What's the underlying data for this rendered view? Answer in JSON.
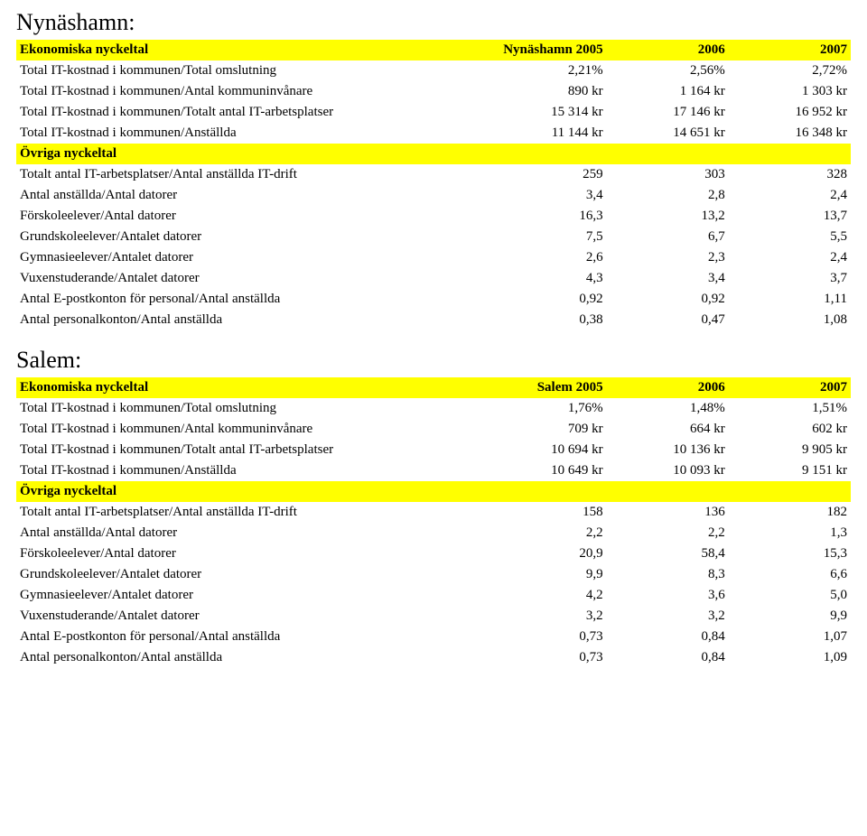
{
  "sections": [
    {
      "title": "Nynäshamn:",
      "header": {
        "label": "Ekonomiska nyckeltal",
        "c1": "Nynäshamn 2005",
        "c2": "2006",
        "c3": "2007"
      },
      "rowsA": [
        {
          "label": "Total IT-kostnad i kommunen/Total omslutning",
          "v1": "2,21%",
          "v2": "2,56%",
          "v3": "2,72%"
        },
        {
          "label": "Total IT-kostnad i kommunen/Antal kommuninvånare",
          "v1": "890 kr",
          "v2": "1 164 kr",
          "v3": "1 303 kr"
        },
        {
          "label": "Total IT-kostnad i kommunen/Totalt antal IT-arbetsplatser",
          "v1": "15 314 kr",
          "v2": "17 146 kr",
          "v3": "16 952 kr"
        },
        {
          "label": "Total IT-kostnad i kommunen/Anställda",
          "v1": "11 144 kr",
          "v2": "14 651 kr",
          "v3": "16 348 kr"
        }
      ],
      "subheader": "Övriga nyckeltal",
      "rowsB": [
        {
          "label": "Totalt antal IT-arbetsplatser/Antal anställda IT-drift",
          "v1": "259",
          "v2": "303",
          "v3": "328"
        },
        {
          "label": "Antal anställda/Antal datorer",
          "v1": "3,4",
          "v2": "2,8",
          "v3": "2,4"
        },
        {
          "label": "Förskoleelever/Antal datorer",
          "v1": "16,3",
          "v2": "13,2",
          "v3": "13,7"
        },
        {
          "label": "Grundskoleelever/Antalet datorer",
          "v1": "7,5",
          "v2": "6,7",
          "v3": "5,5"
        },
        {
          "label": "Gymnasieelever/Antalet datorer",
          "v1": "2,6",
          "v2": "2,3",
          "v3": "2,4"
        },
        {
          "label": "Vuxenstuderande/Antalet datorer",
          "v1": "4,3",
          "v2": "3,4",
          "v3": "3,7"
        },
        {
          "label": "Antal E-postkonton för personal/Antal anställda",
          "v1": "0,92",
          "v2": "0,92",
          "v3": "1,11"
        },
        {
          "label": "Antal personalkonton/Antal anställda",
          "v1": "0,38",
          "v2": "0,47",
          "v3": "1,08"
        }
      ]
    },
    {
      "title": "Salem:",
      "header": {
        "label": "Ekonomiska nyckeltal",
        "c1": "Salem 2005",
        "c2": "2006",
        "c3": "2007"
      },
      "rowsA": [
        {
          "label": "Total IT-kostnad i kommunen/Total omslutning",
          "v1": "1,76%",
          "v2": "1,48%",
          "v3": "1,51%"
        },
        {
          "label": "Total IT-kostnad i kommunen/Antal kommuninvånare",
          "v1": "709 kr",
          "v2": "664 kr",
          "v3": "602 kr"
        },
        {
          "label": "Total IT-kostnad i kommunen/Totalt antal IT-arbetsplatser",
          "v1": "10 694 kr",
          "v2": "10 136 kr",
          "v3": "9 905 kr"
        },
        {
          "label": "Total IT-kostnad i kommunen/Anställda",
          "v1": "10 649 kr",
          "v2": "10 093 kr",
          "v3": "9 151 kr"
        }
      ],
      "subheader": "Övriga nyckeltal",
      "rowsB": [
        {
          "label": "Totalt antal IT-arbetsplatser/Antal anställda IT-drift",
          "v1": "158",
          "v2": "136",
          "v3": "182"
        },
        {
          "label": "Antal anställda/Antal datorer",
          "v1": "2,2",
          "v2": "2,2",
          "v3": "1,3"
        },
        {
          "label": "Förskoleelever/Antal datorer",
          "v1": "20,9",
          "v2": "58,4",
          "v3": "15,3"
        },
        {
          "label": "Grundskoleelever/Antalet datorer",
          "v1": "9,9",
          "v2": "8,3",
          "v3": "6,6"
        },
        {
          "label": "Gymnasieelever/Antalet datorer",
          "v1": "4,2",
          "v2": "3,6",
          "v3": "5,0"
        },
        {
          "label": "Vuxenstuderande/Antalet datorer",
          "v1": "3,2",
          "v2": "3,2",
          "v3": "9,9"
        },
        {
          "label": "Antal E-postkonton för personal/Antal anställda",
          "v1": "0,73",
          "v2": "0,84",
          "v3": "1,07"
        },
        {
          "label": "Antal personalkonton/Antal anställda",
          "v1": "0,73",
          "v2": "0,84",
          "v3": "1,09"
        }
      ]
    }
  ]
}
